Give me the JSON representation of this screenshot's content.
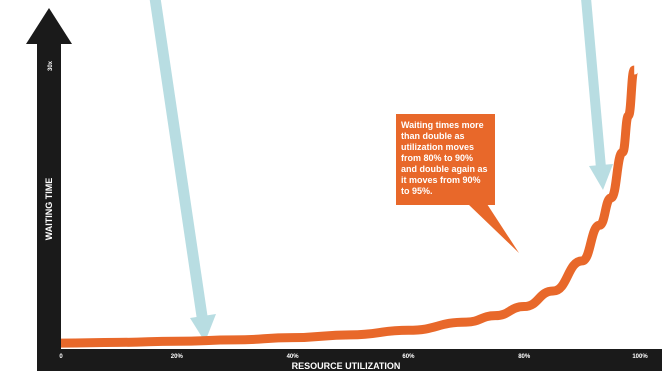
{
  "chart_data": {
    "type": "line",
    "title": "",
    "xlabel": "RESOURCE UTILIZATION",
    "ylabel": "WAITING TIME",
    "y_top_tick": "30x",
    "x_ticks": [
      "0",
      "20%",
      "40%",
      "60%",
      "80%",
      "100%"
    ],
    "xlim": [
      0,
      100
    ],
    "ylim": [
      0,
      30
    ],
    "series": [
      {
        "x": [
          0,
          10,
          20,
          30,
          40,
          50,
          60,
          70,
          75,
          80,
          85,
          90,
          93,
          95,
          97,
          98,
          99
        ],
        "y": [
          0.1,
          0.18,
          0.3,
          0.45,
          0.7,
          1.0,
          1.5,
          2.4,
          3.1,
          4.1,
          5.8,
          9.1,
          13.0,
          16.0,
          21.0,
          25.0,
          30.0
        ]
      }
    ],
    "annotation": {
      "lines": [
        "Waiting times more",
        "than double as",
        "utilization moves",
        "from 80% to 90%",
        "and double again as",
        "it moves from 90%",
        "to 95%."
      ]
    },
    "grid": false
  },
  "colors": {
    "axis": "#1a1a1a",
    "curve": "#e8682a",
    "callout": "#e8682a",
    "arrow": "#b8dde2"
  }
}
